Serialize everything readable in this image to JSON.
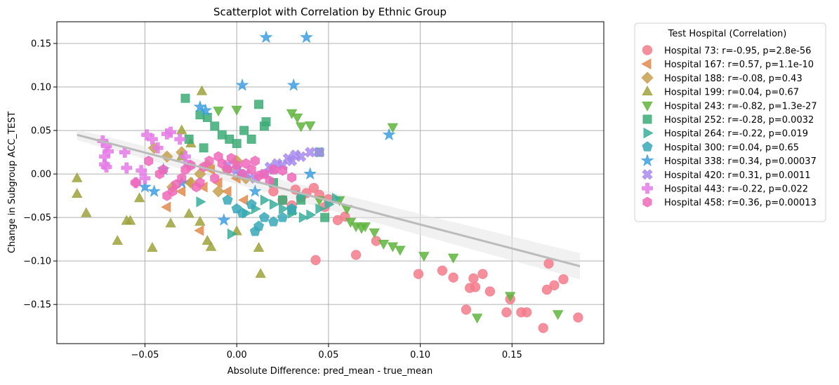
{
  "chart_data": {
    "type": "scatter",
    "title": "Scatterplot with Correlation by Ethnic Group",
    "xlabel": "Absolute Difference: pred_mean - true_mean",
    "ylabel": "Change in Subgroup ACC_TEST",
    "xlim": [
      -0.098,
      0.2
    ],
    "ylim": [
      -0.195,
      0.175
    ],
    "xticks": [
      -0.05,
      0.0,
      0.05,
      0.1,
      0.15
    ],
    "xtick_labels": [
      "−0.05",
      "0.00",
      "0.05",
      "0.10",
      "0.15"
    ],
    "yticks": [
      -0.15,
      -0.1,
      -0.05,
      0.0,
      0.05,
      0.1,
      0.15
    ],
    "ytick_labels": [
      "−0.15",
      "−0.10",
      "−0.05",
      "0.00",
      "0.05",
      "0.10",
      "0.15"
    ],
    "grid": true,
    "legend": {
      "title": "Test Hospital (Correlation)",
      "placement": "outside-right-top"
    },
    "regression_line": {
      "x": [
        -0.087,
        0.187
      ],
      "y": [
        0.045,
        -0.106
      ],
      "color": "#bbbbbb"
    },
    "series": [
      {
        "name": "Hospital 73: r=-0.95, p=2.8e-56",
        "marker": "circle",
        "color": "#f37b8b",
        "x": [
          0.186,
          0.178,
          0.173,
          0.169,
          0.167,
          0.158,
          0.155,
          0.149,
          0.147,
          0.138,
          0.134,
          0.13,
          0.129,
          0.127,
          0.125,
          0.118,
          0.112,
          0.099,
          0.076,
          0.065,
          0.059,
          0.055,
          0.05,
          0.043,
          0.042,
          0.038,
          0.035,
          0.032,
          0.03,
          0.025,
          0.02,
          0.045,
          0.048,
          0.17
        ],
        "y": [
          -0.165,
          -0.121,
          -0.128,
          -0.133,
          -0.177,
          -0.159,
          -0.159,
          -0.144,
          -0.159,
          -0.135,
          -0.115,
          -0.13,
          -0.12,
          -0.131,
          -0.156,
          -0.119,
          -0.111,
          -0.115,
          -0.077,
          -0.093,
          -0.049,
          -0.053,
          -0.029,
          -0.099,
          -0.016,
          -0.022,
          -0.027,
          -0.018,
          -0.036,
          -0.03,
          -0.02,
          -0.024,
          -0.038,
          -0.103
        ]
      },
      {
        "name": "Hospital 167: r=0.57, p=1.1e-10",
        "marker": "triangle-left",
        "color": "#e08b4c",
        "x": [
          -0.038,
          -0.02,
          -0.03,
          -0.026,
          -0.018,
          -0.01,
          -0.005,
          0.0,
          0.004,
          -0.014
        ],
        "y": [
          -0.038,
          -0.065,
          -0.02,
          -0.01,
          -0.015,
          -0.01,
          -0.02,
          -0.005,
          -0.03,
          0.005
        ]
      },
      {
        "name": "Hospital 188: r=-0.08, p=0.43",
        "marker": "diamond",
        "color": "#c7a04e",
        "x": [
          -0.045,
          -0.038,
          -0.03,
          -0.025,
          -0.02,
          -0.016,
          -0.01,
          -0.005,
          0.0,
          0.005,
          -0.035
        ],
        "y": [
          0.03,
          0.02,
          0.025,
          -0.01,
          0.0,
          0.01,
          -0.02,
          0.005,
          0.015,
          -0.005,
          -0.015
        ]
      },
      {
        "name": "Hospital 199: r=0.04, p=0.67",
        "marker": "triangle-up",
        "color": "#9ea23c",
        "x": [
          -0.087,
          -0.087,
          -0.082,
          -0.065,
          -0.06,
          -0.058,
          -0.053,
          -0.046,
          -0.036,
          -0.026,
          -0.02,
          -0.016,
          -0.014,
          0.0,
          0.012,
          0.013,
          -0.03,
          -0.03,
          -0.025,
          -0.019
        ],
        "y": [
          -0.005,
          -0.023,
          -0.045,
          -0.077,
          -0.054,
          -0.054,
          -0.028,
          -0.085,
          -0.057,
          -0.046,
          -0.055,
          -0.077,
          -0.084,
          -0.066,
          -0.085,
          -0.115,
          0.05,
          0.02,
          0.035,
          0.095
        ]
      },
      {
        "name": "Hospital 243: r=-0.82, p=1.3e-27",
        "marker": "triangle-down",
        "color": "#5eb43c",
        "x": [
          0.175,
          0.149,
          0.131,
          0.118,
          0.102,
          0.089,
          0.085,
          0.08,
          0.075,
          0.07,
          0.068,
          0.065,
          0.062,
          0.06,
          0.056,
          0.085,
          0.04,
          0.035,
          0.033,
          0.03,
          0.045,
          0.0,
          -0.01
        ],
        "y": [
          -0.161,
          -0.14,
          -0.165,
          -0.096,
          -0.094,
          -0.087,
          -0.083,
          -0.08,
          -0.067,
          -0.06,
          -0.062,
          -0.06,
          -0.055,
          -0.04,
          -0.03,
          0.054,
          0.056,
          0.055,
          0.065,
          0.07,
          -0.03,
          0.074,
          0.073
        ]
      },
      {
        "name": "Hospital 252: r=-0.28, p=0.0032",
        "marker": "square",
        "color": "#3bab74",
        "x": [
          -0.028,
          -0.02,
          -0.016,
          -0.012,
          -0.008,
          -0.004,
          0.0,
          0.004,
          0.008,
          0.012,
          0.016,
          0.02,
          0.025,
          0.03,
          0.035,
          0.045,
          0.048,
          -0.026,
          -0.018,
          0.015
        ],
        "y": [
          0.087,
          0.068,
          0.065,
          0.055,
          0.045,
          0.04,
          0.035,
          0.05,
          0.04,
          0.08,
          0.06,
          -0.01,
          -0.03,
          -0.042,
          -0.03,
          0.025,
          -0.05,
          0.04,
          0.03,
          0.055
        ]
      },
      {
        "name": "Hospital 264: r=-0.22, p=0.019",
        "marker": "triangle-right",
        "color": "#3aaf9c",
        "x": [
          0.054,
          0.045,
          0.04,
          0.036,
          0.03,
          0.025,
          0.02,
          0.015,
          0.01,
          0.005,
          -0.003,
          -0.02,
          0.035,
          0.05
        ],
        "y": [
          -0.028,
          -0.04,
          -0.047,
          -0.05,
          -0.045,
          -0.04,
          -0.035,
          -0.03,
          -0.04,
          -0.045,
          -0.069,
          -0.032,
          -0.025,
          -0.035
        ]
      },
      {
        "name": "Hospital 300: r=0.04, p=0.65",
        "marker": "pentagon",
        "color": "#38a8b8",
        "x": [
          0.003,
          0.008,
          0.015,
          0.02,
          0.025,
          0.01,
          0.0,
          -0.005,
          0.012,
          0.03
        ],
        "y": [
          -0.045,
          -0.035,
          -0.05,
          -0.055,
          -0.05,
          -0.066,
          -0.04,
          -0.03,
          -0.06,
          -0.04
        ]
      },
      {
        "name": "Hospital 338: r=0.34, p=0.00037",
        "marker": "star",
        "color": "#3d9fe2",
        "x": [
          0.016,
          0.038,
          0.003,
          0.031,
          0.083,
          -0.02,
          -0.017,
          -0.05,
          -0.045,
          -0.007,
          0.04,
          -0.04,
          -0.03,
          0.002,
          0.01
        ],
        "y": [
          0.157,
          0.157,
          0.102,
          0.102,
          0.045,
          0.077,
          0.073,
          -0.015,
          -0.02,
          -0.053,
          0.0,
          0.005,
          -0.01,
          0.0,
          -0.02
        ]
      },
      {
        "name": "Hospital 420: r=0.31, p=0.0011",
        "marker": "x-thick",
        "color": "#a88aee",
        "x": [
          0.04,
          0.035,
          0.03,
          0.025,
          0.02,
          0.015,
          0.01,
          0.005,
          0.0,
          -0.005,
          0.045,
          0.032,
          0.028,
          0.022,
          0.018
        ],
        "y": [
          0.025,
          0.02,
          0.015,
          0.01,
          0.005,
          0.0,
          -0.005,
          0.0,
          0.005,
          0.01,
          0.025,
          0.022,
          0.018,
          0.012,
          0.008
        ]
      },
      {
        "name": "Hospital 443: r=-0.22, p=0.022",
        "marker": "plus-thick",
        "color": "#e57be7",
        "x": [
          -0.073,
          -0.071,
          -0.07,
          -0.071,
          -0.072,
          -0.072,
          -0.061,
          -0.06,
          -0.052,
          -0.05,
          -0.049,
          -0.046,
          -0.043,
          -0.038,
          -0.036,
          -0.031,
          -0.028,
          -0.026,
          -0.055
        ],
        "y": [
          0.038,
          0.032,
          0.026,
          0.008,
          0.011,
          0.02,
          0.025,
          0.007,
          0.004,
          -0.005,
          0.045,
          0.04,
          0.03,
          0.046,
          0.048,
          0.04,
          0.02,
          0.01,
          -0.01
        ]
      },
      {
        "name": "Hospital 458: r=0.36, p=0.00013",
        "marker": "hexagon",
        "color": "#f067b8",
        "x": [
          -0.055,
          -0.048,
          -0.04,
          -0.035,
          -0.03,
          -0.025,
          -0.02,
          -0.015,
          -0.01,
          -0.005,
          0.0,
          0.005,
          0.01,
          0.015,
          0.02,
          -0.022,
          -0.018,
          -0.012,
          -0.008,
          -0.003,
          0.003,
          0.008,
          0.012,
          -0.028,
          -0.033,
          -0.038,
          -0.042,
          0.018,
          0.025,
          0.03
        ],
        "y": [
          -0.01,
          0.015,
          0.005,
          -0.02,
          -0.005,
          0.01,
          -0.01,
          0.015,
          0.02,
          0.005,
          0.01,
          0.012,
          0.015,
          0.0,
          0.005,
          -0.015,
          0.008,
          -0.005,
          0.012,
          0.018,
          0.0,
          0.005,
          -0.002,
          0.005,
          -0.012,
          -0.025,
          0.0,
          -0.008,
          0.004,
          -0.004
        ]
      }
    ]
  }
}
